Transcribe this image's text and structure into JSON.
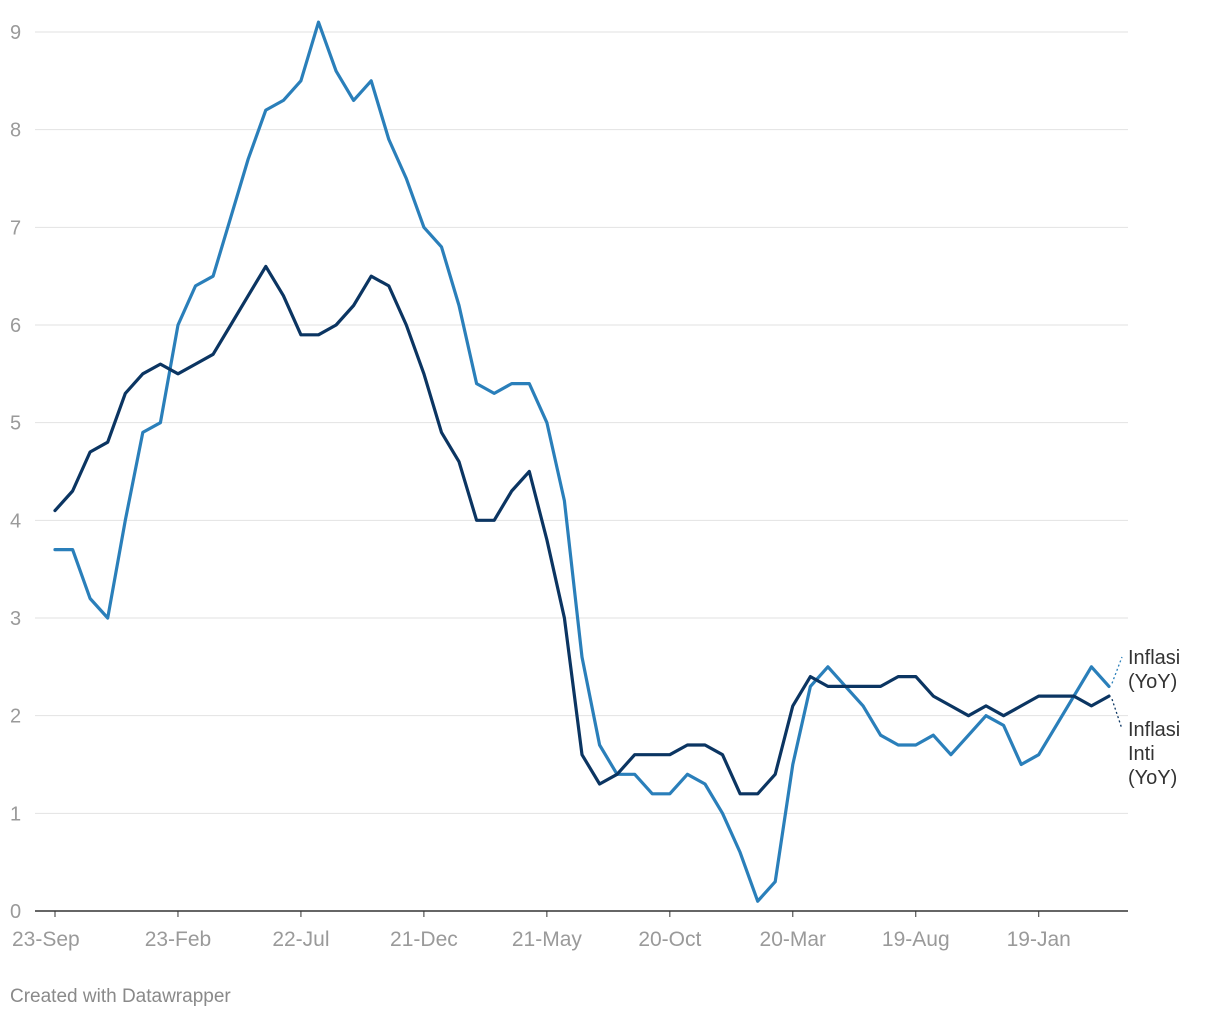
{
  "chart_data": {
    "type": "line",
    "title": "",
    "xlabel": "",
    "ylabel": "",
    "ylim": [
      0,
      9
    ],
    "yticks": [
      0,
      1,
      2,
      3,
      4,
      5,
      6,
      7,
      8,
      9
    ],
    "x_tick_labels": [
      {
        "index": 0,
        "label": "23-Sep"
      },
      {
        "index": 7,
        "label": "23-Feb"
      },
      {
        "index": 14,
        "label": "22-Jul"
      },
      {
        "index": 21,
        "label": "21-Dec"
      },
      {
        "index": 28,
        "label": "21-May"
      },
      {
        "index": 35,
        "label": "20-Oct"
      },
      {
        "index": 42,
        "label": "20-Mar"
      },
      {
        "index": 49,
        "label": "19-Aug"
      },
      {
        "index": 56,
        "label": "19-Jan"
      }
    ],
    "n_points": 61,
    "grid": true,
    "legend": "direct labels at right end of lines",
    "series": [
      {
        "name": "Inflasi (YoY)",
        "label_lines": [
          "Inflasi",
          "(YoY)"
        ],
        "color": "#2a7fba",
        "values": [
          3.7,
          3.7,
          3.2,
          3.0,
          4.0,
          4.9,
          5.0,
          6.0,
          6.4,
          6.5,
          7.1,
          7.7,
          8.2,
          8.3,
          8.5,
          9.1,
          8.6,
          8.3,
          8.5,
          7.9,
          7.5,
          7.0,
          6.8,
          6.2,
          5.4,
          5.3,
          5.4,
          5.4,
          5.0,
          4.2,
          2.6,
          1.7,
          1.4,
          1.4,
          1.2,
          1.2,
          1.4,
          1.3,
          1.0,
          0.6,
          0.1,
          0.3,
          1.5,
          2.3,
          2.5,
          2.3,
          2.1,
          1.8,
          1.7,
          1.7,
          1.8,
          1.6,
          1.8,
          2.0,
          1.9,
          1.5,
          1.6,
          1.9,
          2.2,
          2.5,
          2.3
        ]
      },
      {
        "name": "Inflasi Inti (YoY)",
        "label_lines": [
          "Inflasi",
          "Inti",
          "(YoY)"
        ],
        "color": "#0b3562",
        "values": [
          4.1,
          4.3,
          4.7,
          4.8,
          5.3,
          5.5,
          5.6,
          5.5,
          5.6,
          5.7,
          6.0,
          6.3,
          6.6,
          6.3,
          5.9,
          5.9,
          6.0,
          6.2,
          6.5,
          6.4,
          6.0,
          5.5,
          4.9,
          4.6,
          4.0,
          4.0,
          4.3,
          4.5,
          3.8,
          3.0,
          1.6,
          1.3,
          1.4,
          1.6,
          1.6,
          1.6,
          1.7,
          1.7,
          1.6,
          1.2,
          1.2,
          1.4,
          2.1,
          2.4,
          2.3,
          2.3,
          2.3,
          2.3,
          2.4,
          2.4,
          2.2,
          2.1,
          2.0,
          2.1,
          2.0,
          2.1,
          2.2,
          2.2,
          2.2,
          2.1,
          2.2
        ]
      }
    ]
  },
  "credit": "Created with Datawrapper"
}
